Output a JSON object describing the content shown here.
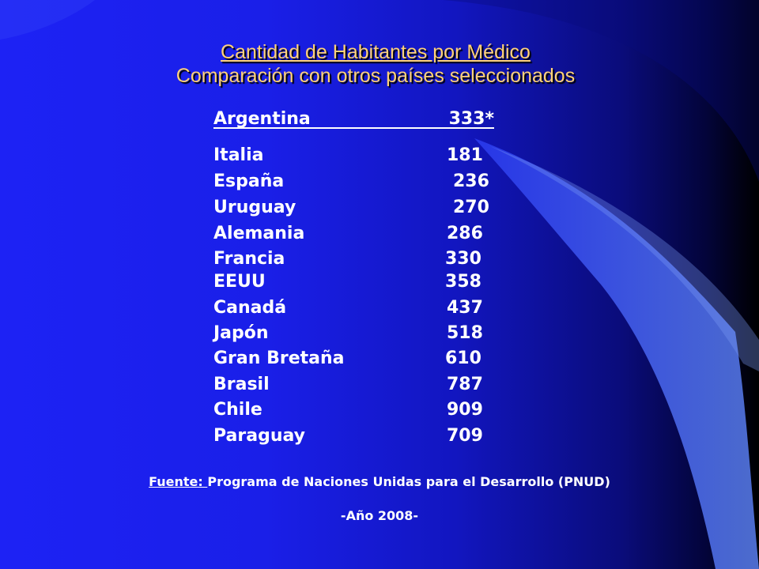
{
  "slide": {
    "title": "Cantidad de Habitantes por Médico",
    "subtitle": "Comparación con otros países  seleccionados",
    "highlight": {
      "country": "Argentina",
      "value": "333*"
    },
    "rows": [
      {
        "country": "Italia",
        "value": "181"
      },
      {
        "country": "España",
        "value": "236"
      },
      {
        "country": "Uruguay",
        "value": "270"
      },
      {
        "country": "Alemania",
        "value": "286"
      },
      {
        "country": "Francia",
        "value": "330"
      },
      {
        "country": "EEUU",
        "value": "358"
      },
      {
        "country": "Canadá",
        "value": "437"
      },
      {
        "country": "Japón",
        "value": "518"
      },
      {
        "country": "Gran Bretaña",
        "value": "610"
      },
      {
        "country": "Brasil",
        "value": "787"
      },
      {
        "country": "Chile",
        "value": "909"
      },
      {
        "country": "Paraguay",
        "value": "709"
      }
    ],
    "source_label": "Fuente: ",
    "source_text": "Programa de Naciones Unidas para el Desarrollo (PNUD)",
    "year": "-Año 2008-"
  },
  "colors": {
    "title": "#ffd27a",
    "text": "#ffffff",
    "background_left": "#1d22f5",
    "background_right": "#000000",
    "decor_swoosh": "#4a6fe8"
  }
}
